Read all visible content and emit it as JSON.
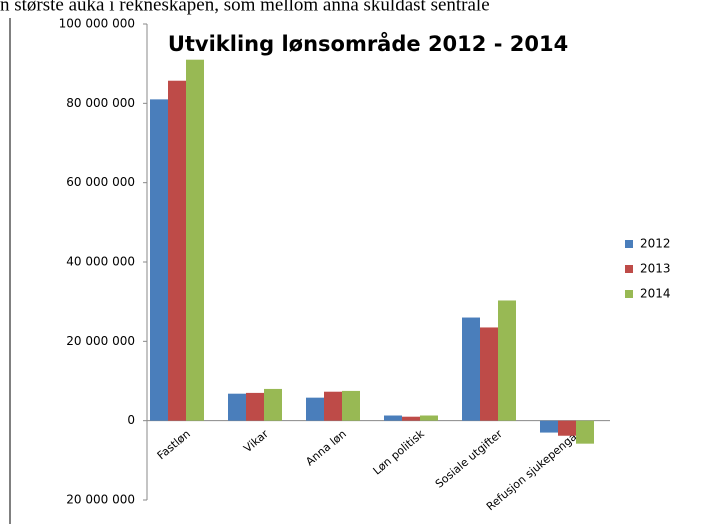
{
  "page_text": "n største auka i rekneskapen, som mellom anna skuldast sentrale",
  "chart_data": {
    "type": "bar",
    "title": "Utvikling lønsområde 2012 - 2014",
    "categories": [
      "Fastløn",
      "Vikar",
      "Anna løn",
      "Løn politisk",
      "Sosiale utgifter",
      "Refusjon sjukepengar"
    ],
    "series": [
      {
        "name": "2012",
        "color": "#4a7ebb",
        "values": [
          81000000,
          6800000,
          5800000,
          1300000,
          26000000,
          -3000000
        ]
      },
      {
        "name": "2013",
        "color": "#be4b48",
        "values": [
          85700000,
          7000000,
          7300000,
          1000000,
          23500000,
          -3800000
        ]
      },
      {
        "name": "2014",
        "color": "#98b954",
        "values": [
          91000000,
          8000000,
          7500000,
          1300000,
          30300000,
          -5800000
        ]
      }
    ],
    "ylim": [
      -20000000,
      100000000
    ],
    "yticks": [
      {
        "value": -20000000,
        "label": "20 000 000"
      },
      0,
      {
        "value": 20000000,
        "label": "20 000 000"
      },
      {
        "value": 40000000,
        "label": "40 000 000"
      },
      {
        "value": 60000000,
        "label": "60 000 000"
      },
      {
        "value": 80000000,
        "label": "80 000 000"
      },
      {
        "value": 100000000,
        "label": "100 000 000"
      }
    ],
    "legend": "right"
  }
}
